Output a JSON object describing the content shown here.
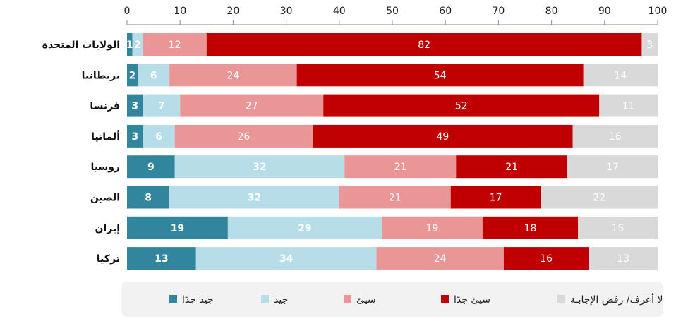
{
  "chart_data": {
    "type": "bar",
    "orientation": "horizontal",
    "stacked": true,
    "xlim": [
      0,
      100
    ],
    "xticks": [
      "0",
      "10",
      "20",
      "30",
      "40",
      "50",
      "60",
      "70",
      "80",
      "90",
      "100"
    ],
    "grid": false,
    "legend_position": "bottom",
    "categories": [
      "الولايات المتحدة",
      "بريطانيا",
      "فرنسا",
      "ألمانيا",
      "روسيا",
      "الصين",
      "إيران",
      "تركيا"
    ],
    "series": [
      {
        "name": "جيد جدًا",
        "color": "#31859c",
        "label_color": "#ffffff",
        "bold": true,
        "values": [
          1,
          2,
          3,
          3,
          9,
          8,
          19,
          13
        ]
      },
      {
        "name": "جيد",
        "color": "#b7dde8",
        "label_color": "#ffffff",
        "bold": true,
        "values": [
          2,
          6,
          7,
          6,
          32,
          32,
          29,
          34
        ]
      },
      {
        "name": "سيئ",
        "color": "#eb9696",
        "label_color": "#ffffff",
        "bold": false,
        "values": [
          12,
          24,
          27,
          26,
          21,
          21,
          19,
          24
        ]
      },
      {
        "name": "سيئ جدًا",
        "color": "#c00000",
        "label_color": "#ffffff",
        "bold": false,
        "values": [
          82,
          54,
          52,
          49,
          21,
          17,
          18,
          16
        ]
      },
      {
        "name": "لا أعرف/ رفض الإجابـة",
        "color": "#d9d9d9",
        "label_color": "#ffffff",
        "bold": false,
        "values": [
          3,
          14,
          11,
          16,
          17,
          22,
          15,
          13
        ]
      }
    ],
    "legend_order": [
      4,
      3,
      2,
      1,
      0
    ]
  }
}
